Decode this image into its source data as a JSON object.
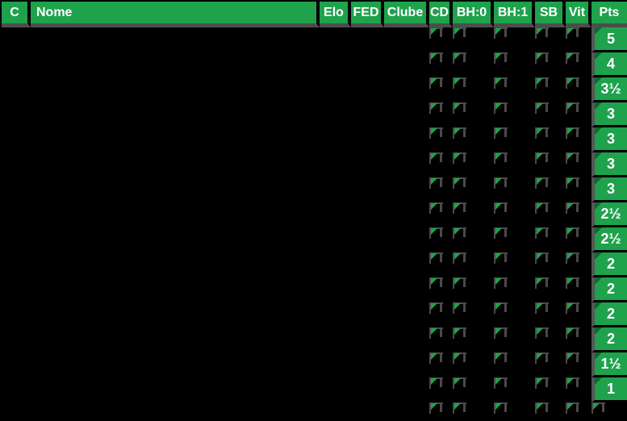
{
  "header": {
    "columns": [
      {
        "id": "c",
        "label": "C"
      },
      {
        "id": "nome",
        "label": "Nome"
      },
      {
        "id": "elo",
        "label": "Elo"
      },
      {
        "id": "fed",
        "label": "FED"
      },
      {
        "id": "clube",
        "label": "Clube"
      },
      {
        "id": "cd",
        "label": "CD"
      },
      {
        "id": "bh0",
        "label": "BH:0"
      },
      {
        "id": "bh1",
        "label": "BH:1"
      },
      {
        "id": "sb",
        "label": "SB"
      },
      {
        "id": "vit",
        "label": "Vit"
      },
      {
        "id": "pts",
        "label": "Pts"
      }
    ]
  },
  "table": {
    "marker_column_ids": [
      "cd",
      "bh0",
      "bh1",
      "sb",
      "vit"
    ],
    "indicator_icon": "green-corner-triangle-icon",
    "rows": [
      {
        "pts": "5"
      },
      {
        "pts": "4"
      },
      {
        "pts": "3½"
      },
      {
        "pts": "3"
      },
      {
        "pts": "3"
      },
      {
        "pts": "3"
      },
      {
        "pts": "3"
      },
      {
        "pts": "2½"
      },
      {
        "pts": "2½"
      },
      {
        "pts": "2"
      },
      {
        "pts": "2"
      },
      {
        "pts": "2"
      },
      {
        "pts": "2"
      },
      {
        "pts": "1½"
      },
      {
        "pts": "1"
      },
      {
        "pts": ""
      }
    ]
  },
  "colors": {
    "accent_green": "#1fa24c",
    "notch_dark_green": "#0d6b2e",
    "grid_gray": "#4a4a4a",
    "strip_gray": "#565656",
    "header_band_gray": "#4d4d4d",
    "background": "#000000",
    "text": "#ffffff"
  }
}
